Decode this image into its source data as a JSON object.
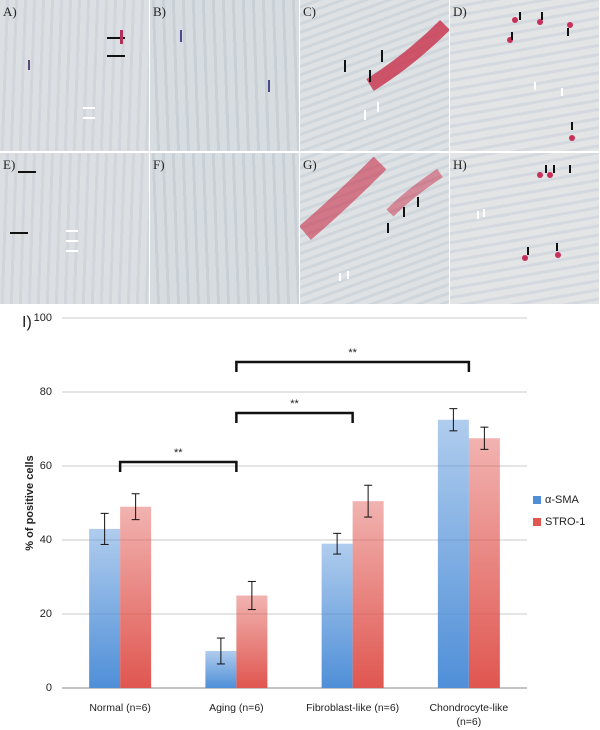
{
  "panels": [
    {
      "label": "A)"
    },
    {
      "label": "B)"
    },
    {
      "label": "C)"
    },
    {
      "label": "D)"
    },
    {
      "label": "E)"
    },
    {
      "label": "F)"
    },
    {
      "label": "G)"
    },
    {
      "label": "H)"
    }
  ],
  "chart_label": "I)",
  "chart_data": {
    "type": "bar",
    "y_label": "% of positive cells",
    "categories": [
      "Normal (n=6)",
      "Aging (n=6)",
      "Fibroblast-like (n=6)",
      "Chondrocyte-like\n(n=6)"
    ],
    "series": [
      {
        "name": "α-SMA",
        "color": "#4f8fd8",
        "values": [
          43,
          10,
          39,
          72.5
        ],
        "errors": [
          4.2,
          3.5,
          2.8,
          3
        ]
      },
      {
        "name": "STRO-1",
        "color": "#e05650",
        "values": [
          49,
          25,
          50.5,
          67.5
        ],
        "errors": [
          3.5,
          3.8,
          4.3,
          3
        ]
      }
    ],
    "ylim": [
      0,
      100
    ],
    "yticks": [
      0,
      20,
      40,
      60,
      80,
      100
    ],
    "grid": true,
    "legend": "right",
    "annotations": [
      {
        "label": "**"
      },
      {
        "label": "**"
      },
      {
        "label": "**"
      }
    ]
  }
}
